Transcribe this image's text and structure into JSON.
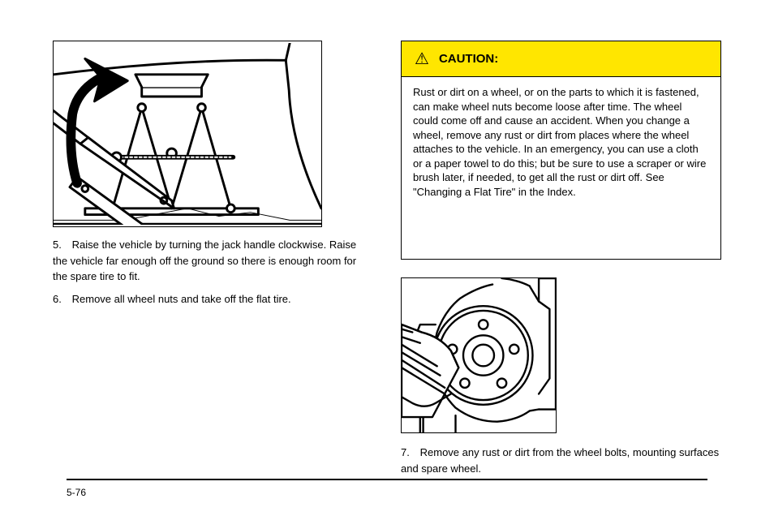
{
  "caution": {
    "heading": "CAUTION:",
    "body": "Rust or dirt on a wheel, or on the parts to which it is fastened, can make wheel nuts become loose after time. The wheel could come off and cause an accident. When you change a wheel, remove any rust or dirt from places where the wheel attaches to the vehicle. In an emergency, you can use a cloth or a paper towel to do this; but be sure to use a scraper or wire brush later, if needed, to get all the rust or dirt off. See \"Changing a Flat Tire\" in the Index."
  },
  "steps": {
    "s5": {
      "num": "5.",
      "text": "Raise the vehicle by turning the jack handle clockwise. Raise the vehicle far enough off the ground so there is enough room for the spare tire to fit."
    },
    "s6": {
      "num": "6.",
      "text": "Remove all wheel nuts and take off the flat tire."
    },
    "s7": {
      "num": "7.",
      "text": "Remove any rust or dirt from the wheel bolts, mounting surfaces and spare wheel."
    }
  },
  "figures": {
    "jack": {
      "svg": "<svg viewBox='0 0 340 230' xmlns='http://www.w3.org/2000/svg'><g fill='none' stroke='#000' stroke-width='3' stroke-linejoin='round' stroke-linecap='round'><path d='M0 40 Q160 20 295 22 L299 60 Q302 130 340 210' fill='none'/><path d='M295 22 L300 0'/><path d='M0 230 L340 230' fill='none'/><path d='M0 225 L90 225 170 210 210 220 250 215 300 225 340 225' stroke-width='1' fill='none'/><g><path d='M75 210 L112 82 L150 210 Z'/><path d='M150 210 L188 82 L225 210 Z'/><path d='M75 210 L40 210 40 218 260 218 260 210 225 210'/><circle cx='112' cy='82' r='5' fill='#fff'/><circle cx='188' cy='82' r='5' fill='#fff'/><circle cx='150' cy='140' r='6' fill='#fff'/><circle cx='75' cy='210' r='5' fill='#fff'/><circle cx='225' cy='210' r='5' fill='#fff'/><path d='M112 68 L188 68 188 56 112 56 Z' fill='#fff'/><path d='M112 56 L104 40 196 40 188 56' fill='#fff'/><path d='M80 145 L228 145' stroke-width='6'/><path d='M85 145 L225 145' stroke='#fff' stroke-width='2' stroke-dasharray='3 3'/><circle cx='80' cy='145' r='6' fill='#fff'/></g><g><path d='M44 120 L150 200 153 210 34 128 Z' fill='#fff'/><path d='M44 120 L10 94 0 86'/><path d='M34 128 L0 102'/><rect x='30' y='170' width='108' height='16' transform='rotate(36 30 170)' fill='#fff'/><circle cx='40' cy='185' r='4'/><circle cx='140' cy='200' r='4'/></g><path d='M30 178 Q18 140 24 90 Q30 60 60 44' fill='none' stroke-width='12' stroke='#000'/><path d='M60 44 L40 20 94 48 52 74 Z' fill='#000' stroke='#000'/></g></svg>"
    },
    "hub": {
      "svg": "<svg viewBox='0 0 200 200' xmlns='http://www.w3.org/2000/svg'><g fill='none' stroke='#000' stroke-width='2.5' stroke-linejoin='round' stroke-linecap='round'><path d='M130 0 Q150 2 166 10'/><path d='M118 8 Q98 12 76 26 56 42 46 70 40 92 44 120 50 148 70 168 94 186 124 186 150 184 166 172 L178 170'/><path d='M44 60 L24 60 16 80 14 120 14 140 24 178 24 200'/><path d='M14 140 L36 140'/><path d='M46 160 L28 180 28 200'/><path d='M70 178 L70 200'/><path d='M178 170 L200 170 200 0 178 0 178 30 166 10'/><path d='M178 30 L192 40 192 130 178 150'/><circle cx='106' cy='100' r='64' fill='#fff'/><circle cx='106' cy='100' r='58'/><circle cx='106' cy='100' r='26' fill='#fff'/><circle cx='106' cy='100' r='14'/><circle cx='106' cy='60' r='6'/><circle cx='146' cy='92' r='6'/><circle cx='130' cy='136' r='6'/><circle cx='82' cy='136' r='6'/><circle cx='66' cy='92' r='6'/><g><path d='M0 60 L26 70 Q50 76 64 94 L74 116 40 180 0 180 Z' fill='#fff'/><path d='M0 60 L26 70 Q50 76 64 94 L74 116'/><path d='M0 86 L46 114'/><path d='M0 76 L24 84'/><path d='M0 66 L14 70'/><path d='M0 96 L50 126'/><path d='M0 106 L56 142'/><path d='M0 116 L56 150'/><path d='M64 150 L44 162 Q30 170 14 162 L0 154'/></g></g></svg>"
    }
  },
  "pagenum": "5-76",
  "colors": {
    "caution_bg": "#ffe600"
  }
}
